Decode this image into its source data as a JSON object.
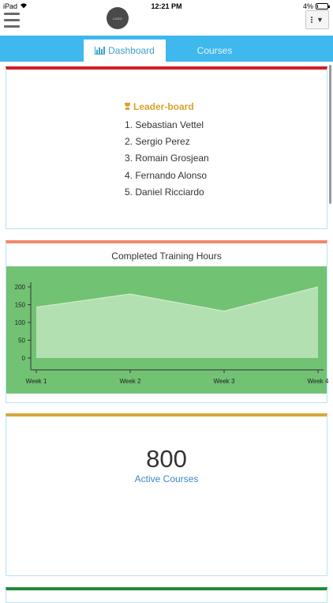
{
  "status_bar": {
    "carrier": "iPad",
    "time": "12:21 PM",
    "battery": "4%",
    "battery_level": 0.04
  },
  "header": {
    "logo_text": "LOGO",
    "menu_icon": "hamburger-icon",
    "options_icon": "vertical-dots-icon"
  },
  "nav": {
    "tabs": [
      {
        "label": "Dashboard",
        "icon": "bar-chart-icon",
        "active": true
      },
      {
        "label": "Courses",
        "active": false
      }
    ],
    "bar_color": "#3fb8ee"
  },
  "leaderboard": {
    "title": "Leader-board",
    "icon": "trophy-icon",
    "accent": "#cc2127",
    "items": [
      "1. Sebastian Vettel",
      "2. Sergio Perez",
      "3. Romain Grosjean",
      "4. Fernando Alonso",
      "5. Daniel Ricciardo"
    ]
  },
  "training_hours": {
    "title": "Completed Training Hours",
    "accent": "#f08a6e",
    "bg_color": "#72c274"
  },
  "chart_data": {
    "type": "area",
    "title": "Completed Training Hours",
    "categories": [
      "Week 1",
      "Week 2",
      "Week 3",
      "Week 4"
    ],
    "values": [
      143,
      180,
      132,
      200
    ],
    "yticks": [
      0,
      50,
      100,
      150,
      200
    ],
    "ylim": [
      0,
      200
    ],
    "grid": false
  },
  "active_courses": {
    "count": "800",
    "label": "Active Courses",
    "accent": "#d9a63c"
  }
}
